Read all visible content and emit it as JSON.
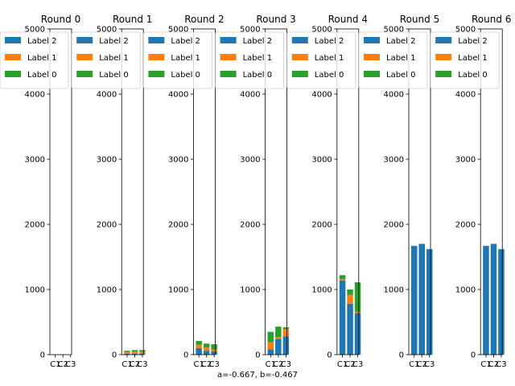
{
  "chart_data": {
    "type": "bar",
    "stacked": true,
    "caption": "a=-0.667, b=-0.467",
    "ylim": [
      0,
      5000
    ],
    "yticks": [
      0,
      1000,
      2000,
      3000,
      4000,
      5000
    ],
    "xtick_labels": [
      "C1",
      "C2",
      "C3"
    ],
    "legend_labels": [
      "Label 2",
      "Label 1",
      "Label 0"
    ],
    "legend_placement": "top-right (overflowing to the left)",
    "colors": {
      "Label 2": "#1f77b4",
      "Label 1": "#ff7f0e",
      "Label 0": "#2ca02c"
    },
    "subplots": [
      {
        "title": "Round 0",
        "stacks": []
      },
      {
        "title": "Round 1",
        "stacks": [
          {
            "Label 2": 15,
            "Label 1": 25,
            "Label 0": 20
          },
          {
            "Label 2": 15,
            "Label 1": 30,
            "Label 0": 25
          },
          {
            "Label 2": 15,
            "Label 1": 30,
            "Label 0": 25
          }
        ]
      },
      {
        "title": "Round 2",
        "stacks": [
          {
            "Label 2": 100,
            "Label 1": 50,
            "Label 0": 60
          },
          {
            "Label 2": 60,
            "Label 1": 50,
            "Label 0": 60
          },
          {
            "Label 2": 50,
            "Label 1": 30,
            "Label 0": 80
          }
        ]
      },
      {
        "title": "Round 3",
        "stacks": [
          {
            "Label 2": 80,
            "Label 1": 110,
            "Label 0": 160
          },
          {
            "Label 2": 240,
            "Label 1": 30,
            "Label 0": 160
          },
          {
            "Label 2": 280,
            "Label 1": 110,
            "Label 0": 30
          }
        ]
      },
      {
        "title": "Round 4",
        "stacks": [
          {
            "Label 2": 1140,
            "Label 1": 20,
            "Label 0": 60
          },
          {
            "Label 2": 780,
            "Label 1": 140,
            "Label 0": 80
          },
          {
            "Label 2": 640,
            "Label 1": 20,
            "Label 0": 450
          }
        ]
      },
      {
        "title": "Round 5",
        "stacks": [
          {
            "Label 2": 1670,
            "Label 1": 0,
            "Label 0": 0
          },
          {
            "Label 2": 1700,
            "Label 1": 0,
            "Label 0": 0
          },
          {
            "Label 2": 1620,
            "Label 1": 0,
            "Label 0": 0
          }
        ]
      },
      {
        "title": "Round 6",
        "stacks": [
          {
            "Label 2": 1670,
            "Label 1": 0,
            "Label 0": 0
          },
          {
            "Label 2": 1700,
            "Label 1": 0,
            "Label 0": 0
          },
          {
            "Label 2": 1620,
            "Label 1": 0,
            "Label 0": 0
          }
        ]
      }
    ]
  }
}
